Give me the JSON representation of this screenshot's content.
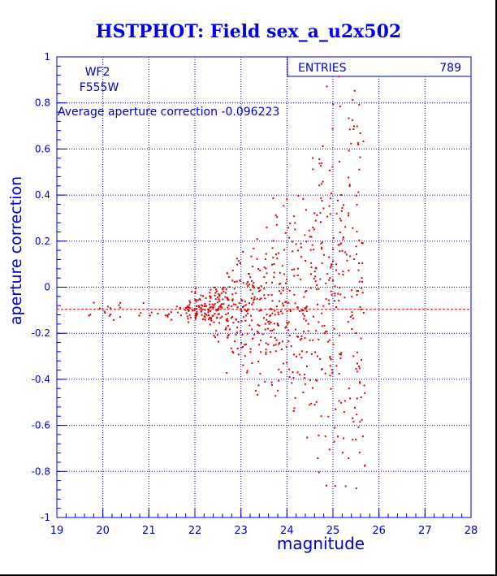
{
  "title": "HSTPHOT: Field sex_a_u2x502",
  "labels": {
    "chip": "WF2",
    "filter": "F555W",
    "average_text": "Average aperture correction -0.096223",
    "entries_label": "ENTRIES",
    "entries_value": "789"
  },
  "colors": {
    "axes": "#0000cc",
    "grid": "#0000cc",
    "title": "#0000ee",
    "points": "#dd0000",
    "average_line": "#dd0000"
  },
  "chart_data": {
    "type": "scatter",
    "title": "HSTPHOT: Field sex_a_u2x502",
    "xlabel": "magnitude",
    "ylabel": "aperture correction",
    "xlim": [
      19,
      28
    ],
    "ylim": [
      -1,
      1
    ],
    "xticks": [
      "19",
      "20",
      "21",
      "22",
      "23",
      "24",
      "25",
      "26",
      "27",
      "28"
    ],
    "yticks": [
      "-1",
      "-0.8",
      "-0.6",
      "-0.4",
      "-0.2",
      "0",
      "0.2",
      "0.4",
      "0.6",
      "0.8",
      "1"
    ],
    "grid": true,
    "average": -0.096223,
    "entries": 789,
    "point_count": 789,
    "points_generation": "synthetic reconstruction; dense cloud centered at magnitude ~24, spread increasing toward faint end",
    "points_sample": [
      {
        "x": 19.5,
        "y": -0.09
      },
      {
        "x": 20.3,
        "y": -0.08
      },
      {
        "x": 21.6,
        "y": -0.1
      },
      {
        "x": 22.4,
        "y": -0.12
      },
      {
        "x": 23.1,
        "y": -0.05
      },
      {
        "x": 23.6,
        "y": -0.2
      },
      {
        "x": 24.0,
        "y": -0.3
      },
      {
        "x": 24.3,
        "y": 0.1
      },
      {
        "x": 24.6,
        "y": 0.3
      },
      {
        "x": 25.0,
        "y": 0.5
      },
      {
        "x": 25.3,
        "y": -0.75
      },
      {
        "x": 25.5,
        "y": 0.9
      }
    ]
  }
}
